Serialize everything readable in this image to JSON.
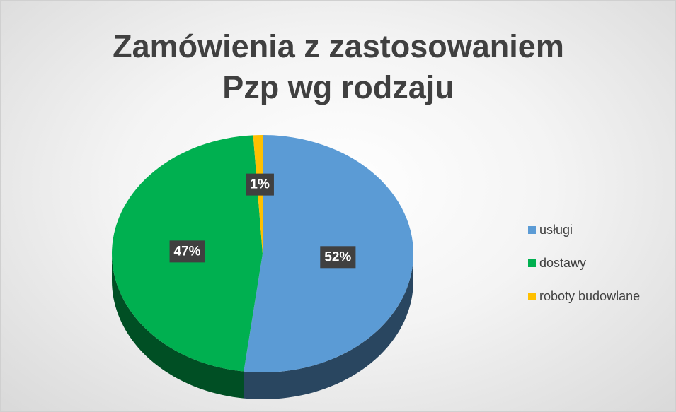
{
  "chart_data": {
    "type": "pie3d",
    "title": "Zamówienia z zastosowaniem Pzp wg rodzaju",
    "categories": [
      "usługi",
      "dostawy",
      "roboty budowlane"
    ],
    "values": [
      52,
      47,
      1
    ],
    "value_labels": [
      "52%",
      "47%",
      "1%"
    ],
    "colors": [
      "#5b9bd5",
      "#00b050",
      "#ffc000"
    ],
    "legend": "right"
  }
}
